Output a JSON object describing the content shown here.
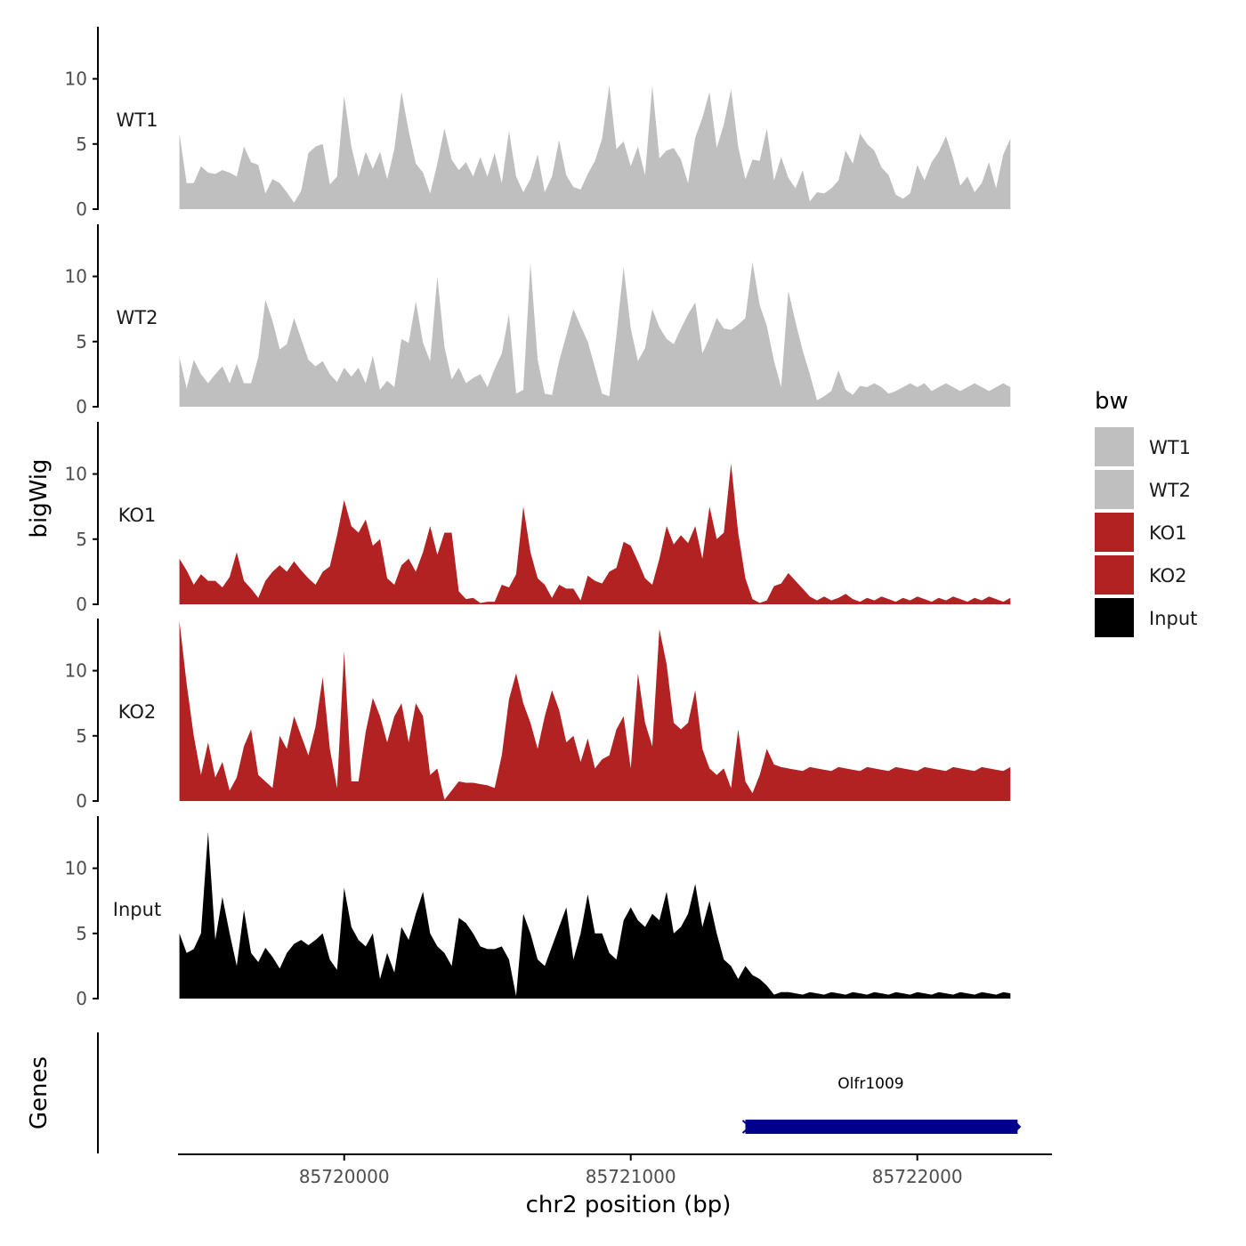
{
  "chart_data": {
    "type": "area",
    "xlabel": "chr2 position (bp)",
    "ylabel": "bigWig",
    "genes_label": "Genes",
    "xlim": [
      85719420,
      85722470
    ],
    "ylim": [
      0,
      14
    ],
    "y_ticks": [
      0,
      5,
      10
    ],
    "y_tick_labels": [
      "0",
      "5",
      "10"
    ],
    "x_ticks": [
      85720000,
      85721000,
      85722000
    ],
    "x_tick_labels": [
      "85720000",
      "85721000",
      "85722000"
    ],
    "x": [
      85719425,
      85719450,
      85719475,
      85719500,
      85719525,
      85719550,
      85719575,
      85719600,
      85719625,
      85719650,
      85719675,
      85719700,
      85719725,
      85719750,
      85719775,
      85719800,
      85719825,
      85719850,
      85719875,
      85719900,
      85719925,
      85719950,
      85719975,
      85720000,
      85720025,
      85720050,
      85720075,
      85720100,
      85720125,
      85720150,
      85720175,
      85720200,
      85720225,
      85720250,
      85720275,
      85720300,
      85720325,
      85720350,
      85720375,
      85720400,
      85720425,
      85720450,
      85720475,
      85720500,
      85720525,
      85720550,
      85720575,
      85720600,
      85720625,
      85720650,
      85720675,
      85720700,
      85720725,
      85720750,
      85720775,
      85720800,
      85720825,
      85720850,
      85720875,
      85720900,
      85720925,
      85720950,
      85720975,
      85721000,
      85721025,
      85721050,
      85721075,
      85721100,
      85721125,
      85721150,
      85721175,
      85721200,
      85721225,
      85721250,
      85721275,
      85721300,
      85721325,
      85721350,
      85721375,
      85721400,
      85721425,
      85721450,
      85721475,
      85721500,
      85721525,
      85721550,
      85721575,
      85721600,
      85721625,
      85721650,
      85721675,
      85721700,
      85721725,
      85721750,
      85721775,
      85721800,
      85721825,
      85721850,
      85721875,
      85721900,
      85721925,
      85721950,
      85721975,
      85722000,
      85722025,
      85722050,
      85722075,
      85722100,
      85722125,
      85722150,
      85722175,
      85722200,
      85722225,
      85722250,
      85722275,
      85722300,
      85722325
    ],
    "legend": {
      "title": "bw",
      "entries": [
        {
          "name": "WT1",
          "color": "#bfbfbf"
        },
        {
          "name": "WT2",
          "color": "#bfbfbf"
        },
        {
          "name": "KO1",
          "color": "#b22222"
        },
        {
          "name": "KO2",
          "color": "#b22222"
        },
        {
          "name": "Input",
          "color": "#000000"
        }
      ]
    },
    "series": [
      {
        "name": "WT1",
        "color": "#bfbfbf",
        "values": [
          5.8,
          2.0,
          2.0,
          3.3,
          2.8,
          2.7,
          3.0,
          2.8,
          2.5,
          4.8,
          3.6,
          3.4,
          1.2,
          2.3,
          2.0,
          1.3,
          0.5,
          1.4,
          4.3,
          4.8,
          5.0,
          1.9,
          2.5,
          8.7,
          4.8,
          2.5,
          4.4,
          3.1,
          4.4,
          2.3,
          4.6,
          9.0,
          6.0,
          3.5,
          2.8,
          1.2,
          3.5,
          6.2,
          3.8,
          3.0,
          3.6,
          2.5,
          4.0,
          2.5,
          4.3,
          2.0,
          6.0,
          2.5,
          1.3,
          2.3,
          4.2,
          1.3,
          2.5,
          5.3,
          2.6,
          1.7,
          1.5,
          2.7,
          3.7,
          5.4,
          9.5,
          4.6,
          5.2,
          3.3,
          4.8,
          2.6,
          9.5,
          3.9,
          4.5,
          4.7,
          3.8,
          2.0,
          5.5,
          7.0,
          9.0,
          4.7,
          6.5,
          9.2,
          4.8,
          2.3,
          3.8,
          3.7,
          6.2,
          2.2,
          4.0,
          2.4,
          1.6,
          3.0,
          0.6,
          1.3,
          1.2,
          1.6,
          2.2,
          4.5,
          3.5,
          5.8,
          5.0,
          4.5,
          3.2,
          2.6,
          1.1,
          0.8,
          1.2,
          3.4,
          2.2,
          3.6,
          4.4,
          5.6,
          3.9,
          1.8,
          2.5,
          1.3,
          2.0,
          3.6,
          1.6,
          4.2,
          5.4
        ]
      },
      {
        "name": "WT2",
        "color": "#bfbfbf",
        "values": [
          3.8,
          1.4,
          3.6,
          2.5,
          1.8,
          2.5,
          3.1,
          1.8,
          3.3,
          1.8,
          1.8,
          3.8,
          8.2,
          6.6,
          4.4,
          4.8,
          6.8,
          5.2,
          3.6,
          3.1,
          3.5,
          2.5,
          1.9,
          3.0,
          2.3,
          3.0,
          1.8,
          3.9,
          1.3,
          2.0,
          1.5,
          5.2,
          4.9,
          8.1,
          4.9,
          3.5,
          10.0,
          4.6,
          2.1,
          3.0,
          1.8,
          2.2,
          2.5,
          1.5,
          2.9,
          4.1,
          7.1,
          1.0,
          1.3,
          11.0,
          3.6,
          1.0,
          0.9,
          3.5,
          5.5,
          7.5,
          6.2,
          5.0,
          3.0,
          1.0,
          0.8,
          5.5,
          10.7,
          6.0,
          3.5,
          4.5,
          7.5,
          6.1,
          5.2,
          4.8,
          6.0,
          7.1,
          8.0,
          4.1,
          5.3,
          6.8,
          6.0,
          5.9,
          6.3,
          6.8,
          11.1,
          7.8,
          6.2,
          3.5,
          1.5,
          8.9,
          6.5,
          4.3,
          2.5,
          0.5,
          0.8,
          1.2,
          2.8,
          1.3,
          0.9,
          1.6,
          1.5,
          1.8,
          1.5,
          1.0,
          1.2,
          1.5,
          1.8,
          1.5,
          1.8,
          1.2,
          1.5,
          1.8,
          1.5,
          1.2,
          1.5,
          1.8,
          1.5,
          1.2,
          1.5,
          1.8,
          1.5
        ]
      },
      {
        "name": "KO1",
        "color": "#b22222",
        "values": [
          3.5,
          2.6,
          1.5,
          2.3,
          1.8,
          1.8,
          1.3,
          2.1,
          4.0,
          1.8,
          1.2,
          0.5,
          1.8,
          2.5,
          3.0,
          2.5,
          3.3,
          2.6,
          2.0,
          1.5,
          2.5,
          2.9,
          5.3,
          8.0,
          6.0,
          5.5,
          6.5,
          4.5,
          5.0,
          2.0,
          1.5,
          3.0,
          3.5,
          2.5,
          4.0,
          6.0,
          3.8,
          5.5,
          5.5,
          1.0,
          0.4,
          0.5,
          0.1,
          0.2,
          0.2,
          1.5,
          1.3,
          2.3,
          7.5,
          4.0,
          2.0,
          1.5,
          0.5,
          1.5,
          1.2,
          1.2,
          0.3,
          2.2,
          1.8,
          1.6,
          2.5,
          2.8,
          4.8,
          4.5,
          3.3,
          2.0,
          1.5,
          3.5,
          6.0,
          4.6,
          5.3,
          4.7,
          6.0,
          3.5,
          7.5,
          5.0,
          5.5,
          10.8,
          5.5,
          2.0,
          0.4,
          0.1,
          0.3,
          1.4,
          1.6,
          2.4,
          1.8,
          1.2,
          0.6,
          0.3,
          0.6,
          0.3,
          0.5,
          0.8,
          0.4,
          0.2,
          0.5,
          0.3,
          0.6,
          0.4,
          0.2,
          0.5,
          0.3,
          0.6,
          0.4,
          0.2,
          0.5,
          0.3,
          0.6,
          0.4,
          0.2,
          0.5,
          0.3,
          0.6,
          0.4,
          0.2,
          0.5
        ]
      },
      {
        "name": "KO2",
        "color": "#b22222",
        "values": [
          13.8,
          9.0,
          5.0,
          2.0,
          4.5,
          1.8,
          3.0,
          0.8,
          1.8,
          4.2,
          5.5,
          2.0,
          1.5,
          1.0,
          5.0,
          4.0,
          6.5,
          5.0,
          3.5,
          5.7,
          9.5,
          4.0,
          1.0,
          11.5,
          1.5,
          1.5,
          5.3,
          7.9,
          6.5,
          4.5,
          6.5,
          7.5,
          4.5,
          7.5,
          6.5,
          2.0,
          2.5,
          0.1,
          0.8,
          1.5,
          1.4,
          1.4,
          1.3,
          1.2,
          1.0,
          3.5,
          7.8,
          9.8,
          7.5,
          6.0,
          4.0,
          6.5,
          8.5,
          7.0,
          4.5,
          5.0,
          3.0,
          4.8,
          2.5,
          3.2,
          3.5,
          5.5,
          6.5,
          2.5,
          9.8,
          6.0,
          4.2,
          13.2,
          10.5,
          6.0,
          5.5,
          6.0,
          8.5,
          4.0,
          2.5,
          2.0,
          2.5,
          1.0,
          5.5,
          1.5,
          0.6,
          2.0,
          4.0,
          2.8,
          2.6,
          2.5,
          2.4,
          2.3,
          2.6,
          2.5,
          2.4,
          2.3,
          2.6,
          2.5,
          2.4,
          2.3,
          2.6,
          2.5,
          2.4,
          2.3,
          2.6,
          2.5,
          2.4,
          2.3,
          2.6,
          2.5,
          2.4,
          2.3,
          2.6,
          2.5,
          2.4,
          2.3,
          2.6,
          2.5,
          2.4,
          2.3,
          2.6
        ]
      },
      {
        "name": "Input",
        "color": "#000000",
        "values": [
          5.0,
          3.5,
          3.8,
          5.0,
          12.8,
          4.5,
          7.8,
          5.0,
          2.5,
          6.8,
          3.5,
          2.8,
          3.9,
          3.2,
          2.3,
          3.5,
          4.2,
          4.5,
          4.1,
          4.5,
          5.0,
          3.0,
          2.2,
          8.5,
          5.5,
          4.5,
          4.0,
          5.0,
          1.5,
          3.5,
          2.0,
          5.5,
          4.5,
          6.5,
          8.2,
          5.0,
          4.0,
          3.5,
          2.5,
          6.2,
          5.8,
          5.0,
          4.0,
          3.8,
          3.8,
          4.0,
          3.0,
          0.2,
          6.5,
          5.0,
          3.0,
          2.5,
          4.0,
          5.5,
          7.0,
          3.0,
          5.0,
          8.0,
          5.0,
          5.0,
          3.5,
          3.0,
          6.0,
          7.0,
          6.0,
          5.5,
          6.5,
          6.0,
          8.2,
          5.0,
          5.5,
          6.5,
          8.8,
          5.5,
          7.5,
          5.0,
          3.0,
          2.5,
          1.5,
          2.5,
          1.8,
          1.5,
          1.0,
          0.3,
          0.5,
          0.5,
          0.4,
          0.3,
          0.5,
          0.4,
          0.3,
          0.5,
          0.4,
          0.3,
          0.5,
          0.4,
          0.3,
          0.5,
          0.4,
          0.3,
          0.5,
          0.4,
          0.3,
          0.5,
          0.4,
          0.3,
          0.5,
          0.4,
          0.3,
          0.5,
          0.4,
          0.3,
          0.5,
          0.4,
          0.3,
          0.5,
          0.4
        ]
      }
    ],
    "genes": [
      {
        "name": "Olfr1009",
        "start": 85721400,
        "end": 85722350,
        "color": "#00008b"
      }
    ]
  }
}
